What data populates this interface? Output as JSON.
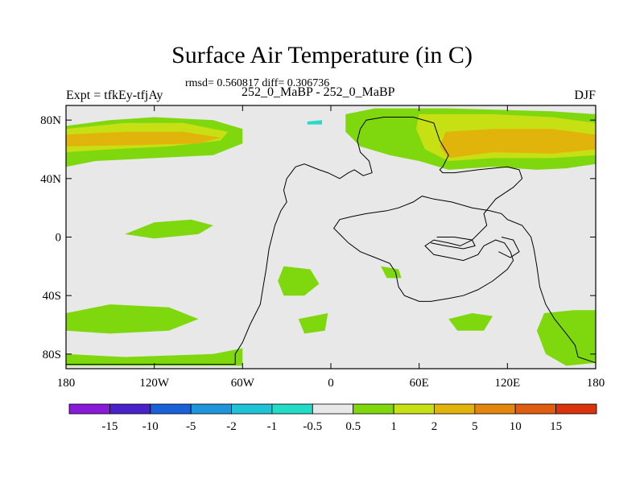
{
  "chart_data": {
    "type": "heatmap",
    "title": "Surface Air Temperature (in C)",
    "subtitle": "rmsd= 0.560817 diff= 0.306736",
    "left_label": "Expt = tfkEy-tfjAy",
    "center_label": "252_0_MaBP - 252_0_MaBP",
    "right_label": "DJF",
    "xlim": [
      -180,
      180
    ],
    "ylim": [
      -90,
      90
    ],
    "x_ticks": [
      {
        "value": -180,
        "label": "180"
      },
      {
        "value": -120,
        "label": "120W"
      },
      {
        "value": -60,
        "label": "60W"
      },
      {
        "value": 0,
        "label": "0"
      },
      {
        "value": 60,
        "label": "60E"
      },
      {
        "value": 120,
        "label": "120E"
      },
      {
        "value": 180,
        "label": "180"
      }
    ],
    "y_ticks": [
      {
        "value": 80,
        "label": "80N"
      },
      {
        "value": 40,
        "label": "40N"
      },
      {
        "value": 0,
        "label": "0"
      },
      {
        "value": -40,
        "label": "40S"
      },
      {
        "value": -80,
        "label": "80S"
      }
    ],
    "colorbar": {
      "colors": [
        "#8a1ad9",
        "#4a22cc",
        "#1a60d8",
        "#1f96db",
        "#1ec3d8",
        "#22dcc8",
        "#e8e8e8",
        "#7fd80e",
        "#c6e014",
        "#e1b40c",
        "#e3860d",
        "#e05c0f",
        "#d9330d"
      ],
      "labels": [
        "-15",
        "-10",
        "-5",
        "-2",
        "-1",
        "-0.5",
        "0.5",
        "1",
        "2",
        "5",
        "10",
        "15"
      ]
    },
    "regions": [
      {
        "level": 1,
        "color": "#7fd80e",
        "points": [
          [
            -180,
            76
          ],
          [
            -150,
            80
          ],
          [
            -120,
            82
          ],
          [
            -80,
            80
          ],
          [
            -60,
            74
          ],
          [
            -60,
            64
          ],
          [
            -80,
            56
          ],
          [
            -120,
            54
          ],
          [
            -160,
            52
          ],
          [
            -180,
            48
          ]
        ]
      },
      {
        "level": 2,
        "color": "#c6e014",
        "points": [
          [
            -180,
            74
          ],
          [
            -140,
            78
          ],
          [
            -100,
            78
          ],
          [
            -70,
            72
          ],
          [
            -75,
            66
          ],
          [
            -110,
            62
          ],
          [
            -150,
            60
          ],
          [
            -180,
            58
          ]
        ]
      },
      {
        "level": 5,
        "color": "#e1b40c",
        "points": [
          [
            -180,
            70
          ],
          [
            -140,
            72
          ],
          [
            -100,
            72
          ],
          [
            -75,
            68
          ],
          [
            -90,
            64
          ],
          [
            -130,
            63
          ],
          [
            -180,
            62
          ]
        ]
      },
      {
        "level": 1,
        "color": "#7fd80e",
        "points": [
          [
            -140,
            2
          ],
          [
            -120,
            10
          ],
          [
            -95,
            12
          ],
          [
            -80,
            8
          ],
          [
            -90,
            2
          ],
          [
            -120,
            -1
          ]
        ]
      },
      {
        "level": 1,
        "color": "#7fd80e",
        "points": [
          [
            -180,
            -52
          ],
          [
            -150,
            -46
          ],
          [
            -110,
            -48
          ],
          [
            -90,
            -56
          ],
          [
            -110,
            -64
          ],
          [
            -150,
            -66
          ],
          [
            -180,
            -64
          ]
        ]
      },
      {
        "level": 1,
        "color": "#7fd80e",
        "points": [
          [
            -180,
            -80
          ],
          [
            -140,
            -82
          ],
          [
            -80,
            -80
          ],
          [
            -60,
            -76
          ],
          [
            -60,
            -88
          ],
          [
            -180,
            -88
          ]
        ]
      },
      {
        "level": 1,
        "color": "#7fd80e",
        "points": [
          [
            -32,
            -20
          ],
          [
            -14,
            -22
          ],
          [
            -8,
            -32
          ],
          [
            -18,
            -40
          ],
          [
            -32,
            -40
          ],
          [
            -36,
            -30
          ]
        ]
      },
      {
        "level": 1,
        "color": "#7fd80e",
        "points": [
          [
            -22,
            -56
          ],
          [
            -2,
            -52
          ],
          [
            -4,
            -64
          ],
          [
            -18,
            -66
          ]
        ]
      },
      {
        "level": 1,
        "color": "#7fd80e",
        "points": [
          [
            10,
            84
          ],
          [
            30,
            88
          ],
          [
            80,
            88
          ],
          [
            150,
            86
          ],
          [
            180,
            84
          ],
          [
            180,
            50
          ],
          [
            160,
            47
          ],
          [
            140,
            46
          ],
          [
            110,
            48
          ],
          [
            80,
            46
          ],
          [
            60,
            52
          ],
          [
            40,
            56
          ],
          [
            20,
            62
          ],
          [
            10,
            72
          ]
        ]
      },
      {
        "level": 2,
        "color": "#c6e014",
        "points": [
          [
            60,
            84
          ],
          [
            110,
            84
          ],
          [
            150,
            82
          ],
          [
            180,
            78
          ],
          [
            180,
            56
          ],
          [
            150,
            54
          ],
          [
            110,
            54
          ],
          [
            80,
            52
          ],
          [
            64,
            60
          ],
          [
            58,
            74
          ]
        ]
      },
      {
        "level": 5,
        "color": "#e1b40c",
        "points": [
          [
            78,
            72
          ],
          [
            110,
            74
          ],
          [
            150,
            74
          ],
          [
            180,
            70
          ],
          [
            180,
            60
          ],
          [
            150,
            57
          ],
          [
            110,
            58
          ],
          [
            80,
            54
          ],
          [
            74,
            62
          ]
        ]
      },
      {
        "level": 1,
        "color": "#7fd80e",
        "points": [
          [
            145,
            -52
          ],
          [
            165,
            -50
          ],
          [
            180,
            -50
          ],
          [
            180,
            -86
          ],
          [
            160,
            -88
          ],
          [
            146,
            -80
          ],
          [
            140,
            -64
          ]
        ]
      },
      {
        "level": 1,
        "color": "#7fd80e",
        "points": [
          [
            80,
            -56
          ],
          [
            96,
            -52
          ],
          [
            110,
            -54
          ],
          [
            104,
            -64
          ],
          [
            86,
            -64
          ]
        ]
      },
      {
        "level": 1,
        "color": "#7fd80e",
        "points": [
          [
            34,
            -20
          ],
          [
            46,
            -22
          ],
          [
            48,
            -28
          ],
          [
            38,
            -28
          ]
        ]
      },
      {
        "level": -1,
        "color": "#22dcc8",
        "points": [
          [
            -16,
            79
          ],
          [
            -6,
            80
          ],
          [
            -6,
            77
          ],
          [
            -16,
            77
          ]
        ]
      }
    ],
    "coastlines": [
      [
        [
          -180,
          -87
        ],
        [
          -65,
          -87
        ],
        [
          -65,
          -80
        ],
        [
          -60,
          -72
        ],
        [
          -55,
          -60
        ],
        [
          -48,
          -46
        ],
        [
          -46,
          -34
        ],
        [
          -44,
          -22
        ],
        [
          -42,
          -8
        ],
        [
          -38,
          8
        ],
        [
          -34,
          18
        ],
        [
          -30,
          24
        ],
        [
          -32,
          32
        ],
        [
          -30,
          40
        ],
        [
          -24,
          48
        ],
        [
          -18,
          50
        ],
        [
          -8,
          46
        ],
        [
          -2,
          44
        ],
        [
          6,
          40
        ],
        [
          12,
          44
        ],
        [
          16,
          46
        ],
        [
          22,
          42
        ],
        [
          28,
          44
        ],
        [
          26,
          52
        ],
        [
          20,
          58
        ],
        [
          18,
          66
        ],
        [
          20,
          74
        ],
        [
          24,
          80
        ],
        [
          36,
          82
        ],
        [
          56,
          82
        ],
        [
          70,
          78
        ],
        [
          74,
          66
        ],
        [
          80,
          56
        ],
        [
          76,
          48
        ],
        [
          74,
          46
        ],
        [
          76,
          44
        ],
        [
          84,
          44
        ],
        [
          100,
          46
        ],
        [
          120,
          48
        ],
        [
          128,
          46
        ],
        [
          130,
          40
        ],
        [
          124,
          34
        ],
        [
          112,
          26
        ],
        [
          104,
          16
        ],
        [
          106,
          8
        ],
        [
          96,
          -2
        ],
        [
          88,
          -6
        ],
        [
          80,
          -4
        ],
        [
          70,
          -2
        ],
        [
          64,
          -6
        ],
        [
          70,
          -12
        ],
        [
          80,
          -14
        ],
        [
          90,
          -16
        ],
        [
          100,
          -12
        ],
        [
          104,
          -6
        ],
        [
          112,
          -2
        ],
        [
          118,
          -4
        ],
        [
          122,
          -10
        ],
        [
          124,
          -16
        ],
        [
          120,
          -22
        ],
        [
          110,
          -30
        ],
        [
          100,
          -36
        ],
        [
          90,
          -40
        ],
        [
          80,
          -42
        ],
        [
          68,
          -44
        ],
        [
          60,
          -44
        ],
        [
          50,
          -40
        ],
        [
          46,
          -34
        ],
        [
          44,
          -24
        ],
        [
          40,
          -18
        ],
        [
          30,
          -14
        ],
        [
          20,
          -10
        ],
        [
          12,
          -4
        ],
        [
          6,
          2
        ],
        [
          2,
          6
        ],
        [
          6,
          12
        ],
        [
          14,
          14
        ],
        [
          24,
          16
        ],
        [
          38,
          18
        ],
        [
          46,
          20
        ],
        [
          56,
          24
        ],
        [
          62,
          28
        ],
        [
          70,
          26
        ],
        [
          82,
          24
        ],
        [
          96,
          20
        ],
        [
          108,
          18
        ],
        [
          116,
          16
        ],
        [
          120,
          12
        ],
        [
          130,
          8
        ],
        [
          136,
          0
        ],
        [
          138,
          -8
        ],
        [
          140,
          -20
        ],
        [
          142,
          -34
        ],
        [
          146,
          -46
        ],
        [
          152,
          -56
        ],
        [
          160,
          -66
        ],
        [
          166,
          -74
        ],
        [
          168,
          -82
        ],
        [
          180,
          -86
        ],
        [
          180,
          -87
        ]
      ],
      [
        [
          68,
          -4
        ],
        [
          78,
          -6
        ],
        [
          90,
          -8
        ],
        [
          98,
          -6
        ],
        [
          96,
          -2
        ],
        [
          84,
          0
        ],
        [
          72,
          0
        ]
      ],
      [
        [
          116,
          0
        ],
        [
          124,
          -2
        ],
        [
          128,
          -10
        ],
        [
          122,
          -14
        ],
        [
          114,
          -10
        ]
      ]
    ]
  }
}
